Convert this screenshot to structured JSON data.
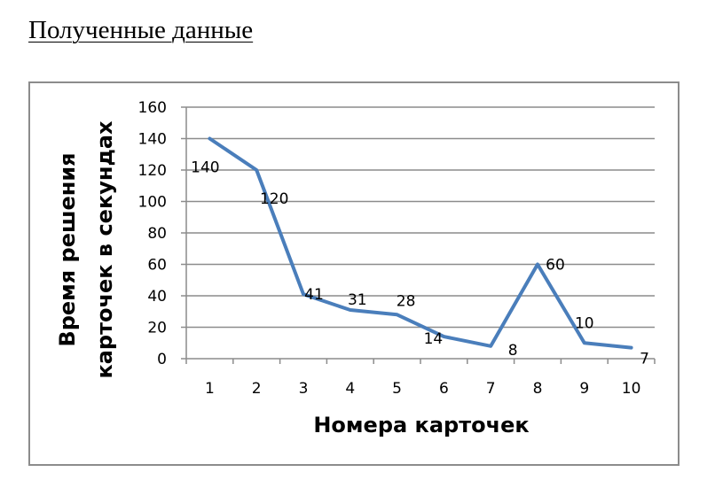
{
  "page": {
    "heading": "Полученные данные"
  },
  "chart_data": {
    "type": "line",
    "categories": [
      "1",
      "2",
      "3",
      "4",
      "5",
      "6",
      "7",
      "8",
      "9",
      "10"
    ],
    "series": [
      {
        "values": [
          140,
          120,
          41,
          31,
          28,
          14,
          8,
          60,
          10,
          7
        ],
        "color": "#4a7ebb"
      }
    ],
    "data_labels": [
      "140",
      "120",
      "41",
      "31",
      "28",
      "14",
      "8",
      "60",
      "10",
      "7"
    ],
    "yticks": [
      "0",
      "20",
      "40",
      "60",
      "80",
      "100",
      "120",
      "140",
      "160"
    ],
    "ylim": [
      0,
      160
    ],
    "xlabel": "Номера карточек",
    "ylabel_line1": "Время решения",
    "ylabel_line2": "карточек в секундах",
    "grid": true,
    "legend": "none"
  }
}
